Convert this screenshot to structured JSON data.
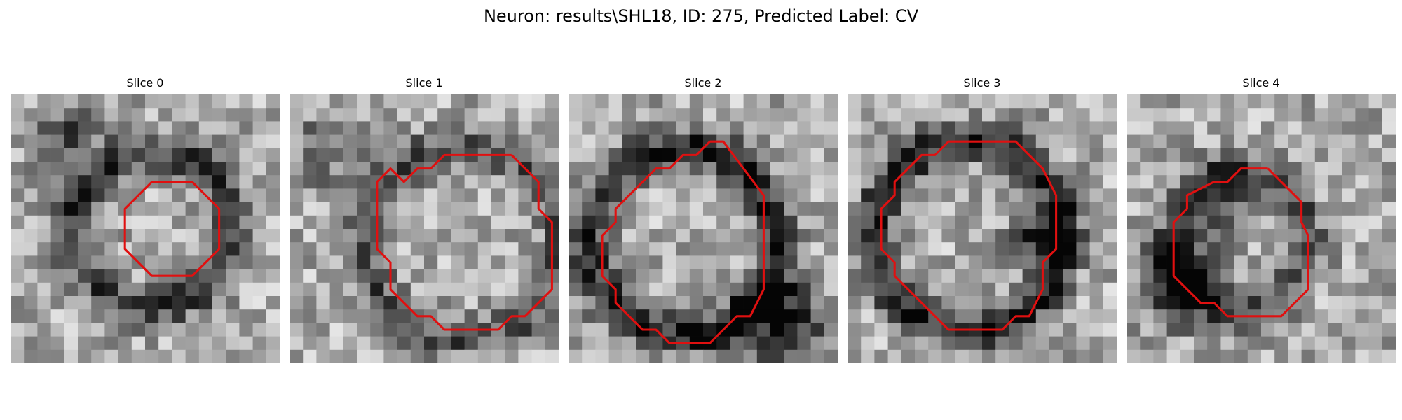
{
  "figure": {
    "title": "Neuron: results\\SHL18, ID: 275, Predicted Label: CV",
    "contour_color": "#e01010",
    "panels": [
      {
        "title": "Slice 0",
        "contour": [
          [
            12.5,
            6.5
          ],
          [
            10.5,
            6.5
          ],
          [
            8.5,
            8.5
          ],
          [
            8.5,
            11.5
          ],
          [
            10.5,
            13.5
          ],
          [
            13.5,
            13.5
          ],
          [
            15.5,
            11.5
          ],
          [
            15.5,
            8.5
          ],
          [
            13.5,
            6.5
          ],
          [
            12.5,
            6.5
          ]
        ]
      },
      {
        "title": "Slice 1",
        "contour": [
          [
            16.5,
            4.5
          ],
          [
            11.5,
            4.5
          ],
          [
            10.5,
            5.5
          ],
          [
            9.5,
            5.5
          ],
          [
            8.5,
            6.5
          ],
          [
            7.5,
            5.5
          ],
          [
            6.5,
            6.5
          ],
          [
            6.5,
            11.5
          ],
          [
            7.5,
            12.5
          ],
          [
            7.5,
            14.5
          ],
          [
            9.5,
            16.5
          ],
          [
            10.5,
            16.5
          ],
          [
            11.5,
            17.5
          ],
          [
            15.5,
            17.5
          ],
          [
            16.5,
            16.5
          ],
          [
            17.5,
            16.5
          ],
          [
            19.5,
            14.5
          ],
          [
            19.5,
            9.5
          ],
          [
            18.5,
            8.5
          ],
          [
            18.5,
            6.5
          ],
          [
            16.5,
            4.5
          ]
        ]
      },
      {
        "title": "Slice 2",
        "contour": [
          [
            10.5,
            3.5
          ],
          [
            9.5,
            4.5
          ],
          [
            8.5,
            4.5
          ],
          [
            7.5,
            5.5
          ],
          [
            6.5,
            5.5
          ],
          [
            3.5,
            8.5
          ],
          [
            3.5,
            9.5
          ],
          [
            2.5,
            10.5
          ],
          [
            2.5,
            13.5
          ],
          [
            3.5,
            14.5
          ],
          [
            3.5,
            15.5
          ],
          [
            5.5,
            17.5
          ],
          [
            6.5,
            17.5
          ],
          [
            7.5,
            18.5
          ],
          [
            10.5,
            18.5
          ],
          [
            12.5,
            16.5
          ],
          [
            13.5,
            16.5
          ],
          [
            14.5,
            14.5
          ],
          [
            14.5,
            7.5
          ],
          [
            11.5,
            3.5
          ],
          [
            10.5,
            3.5
          ]
        ]
      },
      {
        "title": "Slice 3",
        "contour": [
          [
            12.5,
            3.5
          ],
          [
            7.5,
            3.5
          ],
          [
            6.5,
            4.5
          ],
          [
            5.5,
            4.5
          ],
          [
            3.5,
            6.5
          ],
          [
            3.5,
            7.5
          ],
          [
            2.5,
            8.5
          ],
          [
            2.5,
            11.5
          ],
          [
            3.5,
            12.5
          ],
          [
            3.5,
            13.5
          ],
          [
            7.5,
            17.5
          ],
          [
            11.5,
            17.5
          ],
          [
            12.5,
            16.5
          ],
          [
            13.5,
            16.5
          ],
          [
            14.5,
            14.5
          ],
          [
            14.5,
            12.5
          ],
          [
            15.5,
            11.5
          ],
          [
            15.5,
            7.5
          ],
          [
            14.5,
            5.5
          ],
          [
            13.5,
            4.5
          ],
          [
            12.5,
            3.5
          ]
        ]
      },
      {
        "title": "Slice 4",
        "contour": [
          [
            10.5,
            5.5
          ],
          [
            8.5,
            5.5
          ],
          [
            7.5,
            6.5
          ],
          [
            6.5,
            6.5
          ],
          [
            4.5,
            7.5
          ],
          [
            4.5,
            8.5
          ],
          [
            3.5,
            9.5
          ],
          [
            3.5,
            13.5
          ],
          [
            5.5,
            15.5
          ],
          [
            6.5,
            15.5
          ],
          [
            7.5,
            16.5
          ],
          [
            11.5,
            16.5
          ],
          [
            13.5,
            14.5
          ],
          [
            13.5,
            10.5
          ],
          [
            13.0,
            9.5
          ],
          [
            13.0,
            8.0
          ],
          [
            12.5,
            7.5
          ],
          [
            11.5,
            6.5
          ],
          [
            10.5,
            5.5
          ]
        ]
      }
    ]
  }
}
